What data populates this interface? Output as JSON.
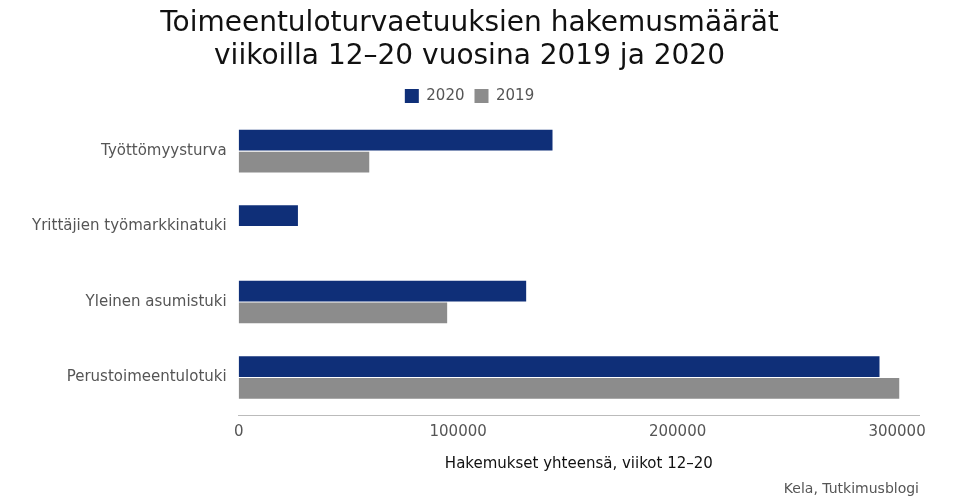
{
  "chart_data": {
    "type": "bar",
    "orientation": "horizontal",
    "title": [
      "Toimeentuloturvaetuuksien hakemusmäärät",
      "viikoilla 12–20 vuosina 2019 ja 2020"
    ],
    "x_label": "Hakemukset yhteensä, viikot 12–20",
    "note": "Kela, Tutkimusblogi",
    "categories": [
      "Työttömyysturva",
      "Yrittäjien työmarkkinatuki",
      "Yleinen asumistuki",
      "Perustoimeentulotuki"
    ],
    "series": [
      {
        "name": "2020",
        "color": "#0f2f78",
        "values": [
          143000,
          27000,
          131000,
          292000
        ]
      },
      {
        "name": "2019",
        "color": "#8c8c8c",
        "values": [
          59500,
          null,
          95000,
          301000
        ]
      }
    ],
    "xlim": [
      0,
      310000
    ],
    "xticks": [
      0,
      100000,
      200000,
      300000
    ],
    "grid": false,
    "legend": "top"
  }
}
